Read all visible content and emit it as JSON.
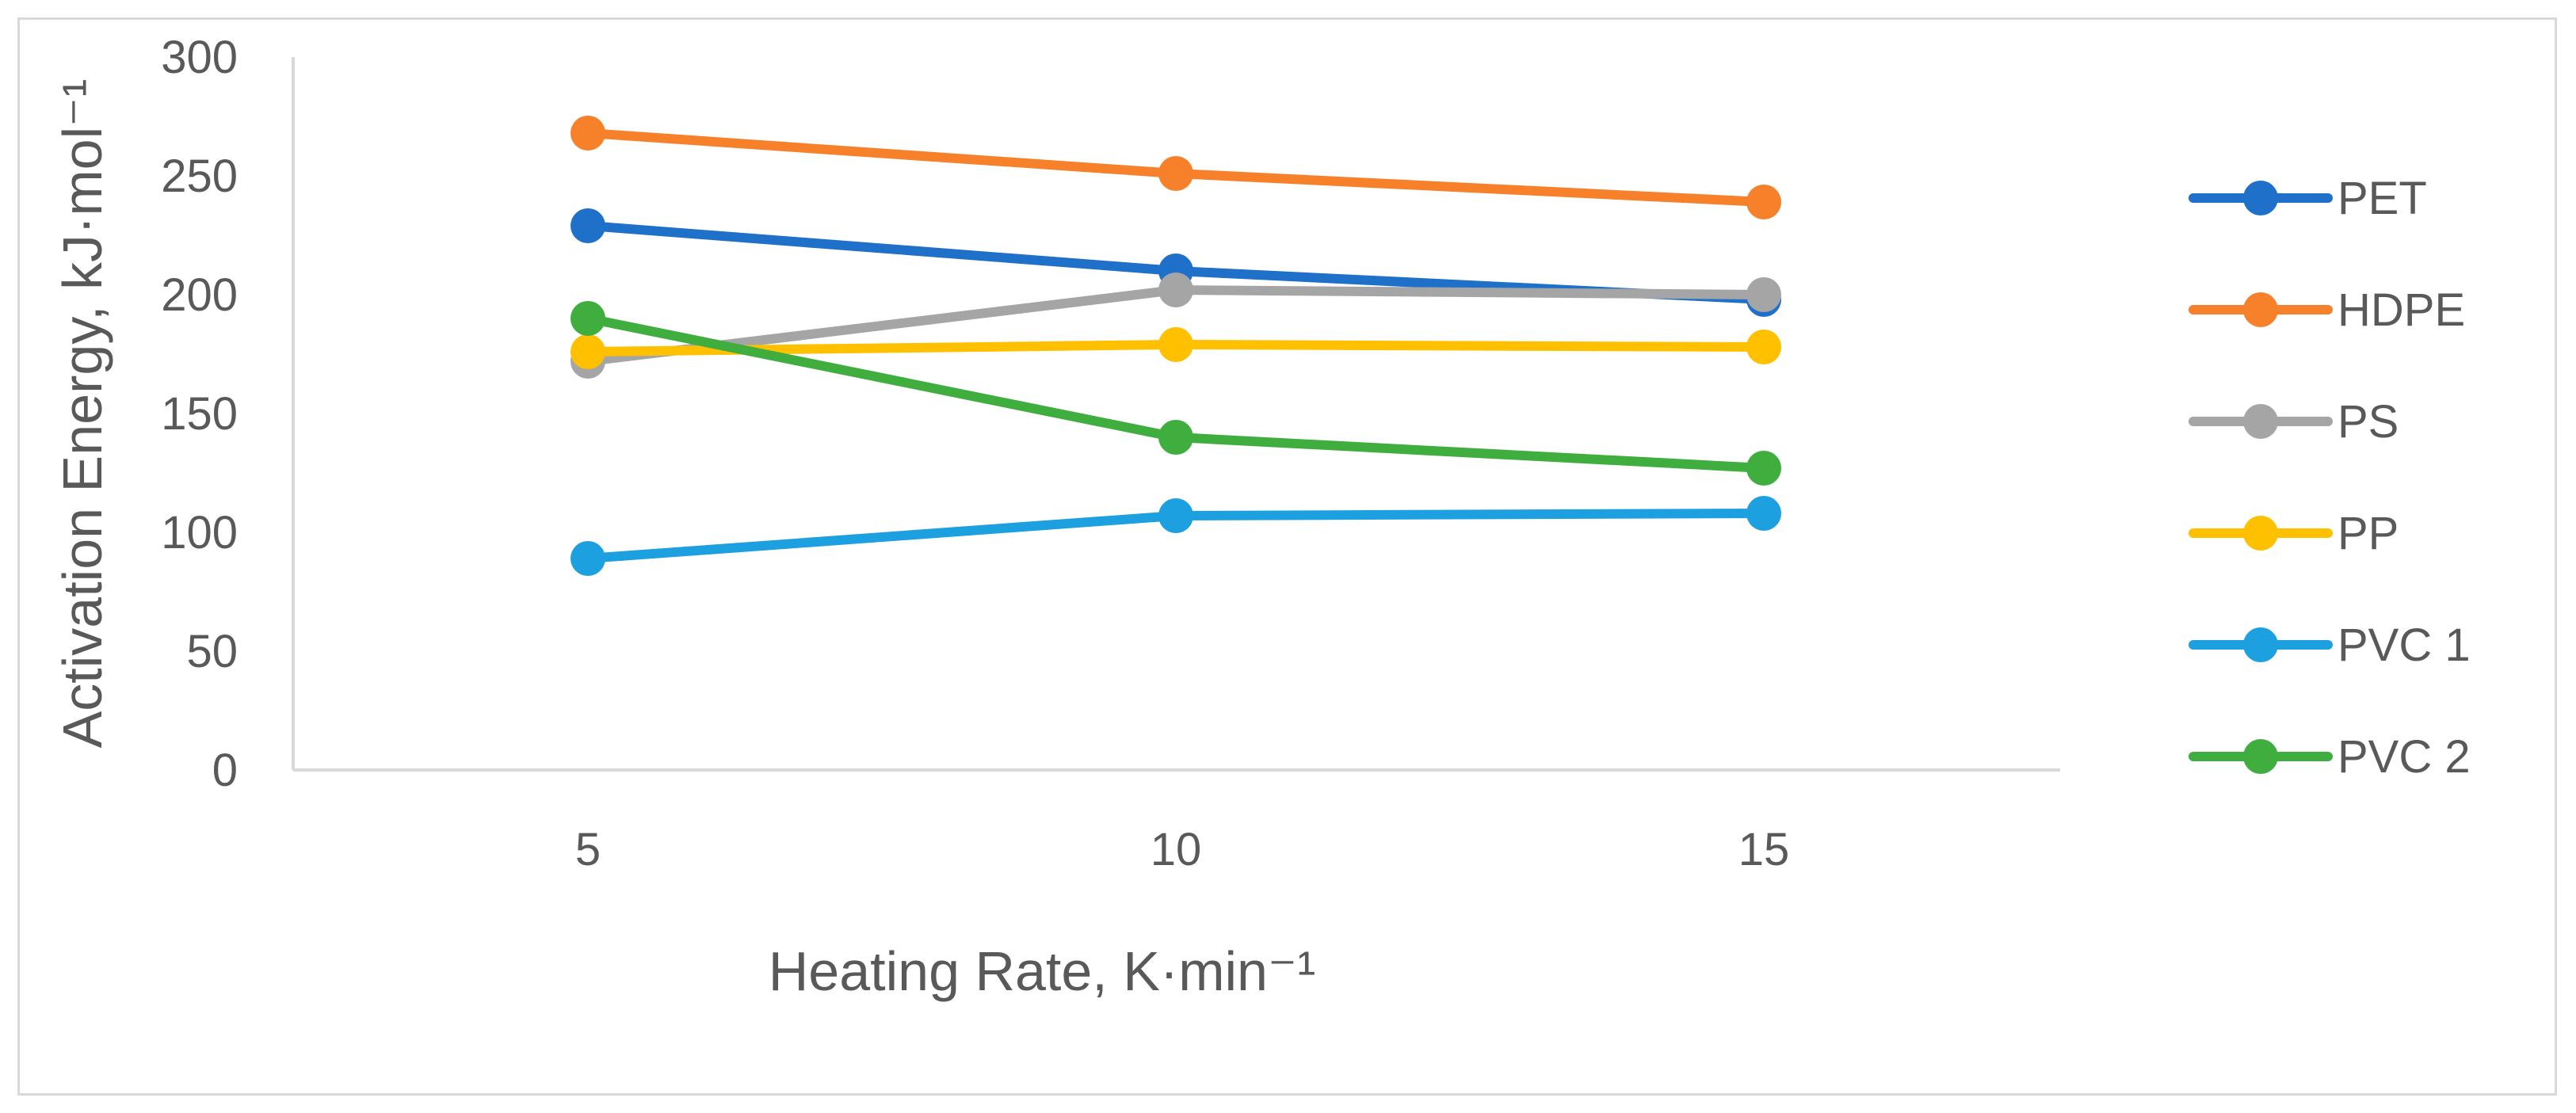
{
  "chart_data": {
    "type": "line",
    "title": "",
    "xlabel": "Heating Rate, K·min⁻¹",
    "ylabel": "Activation Energy, kJ·mol⁻¹",
    "x": [
      5,
      10,
      15
    ],
    "ylim": [
      0,
      300
    ],
    "yticks": [
      0,
      50,
      100,
      150,
      200,
      250,
      300
    ],
    "grid": false,
    "legend_position": "right",
    "series": [
      {
        "name": "PET",
        "color": "#1f70c8",
        "values": [
          229,
          210,
          198
        ]
      },
      {
        "name": "HDPE",
        "color": "#f7812a",
        "values": [
          268,
          251,
          239
        ]
      },
      {
        "name": "PS",
        "color": "#a5a5a5",
        "values": [
          172,
          202,
          200
        ]
      },
      {
        "name": "PP",
        "color": "#ffc000",
        "values": [
          176,
          179,
          178
        ]
      },
      {
        "name": "PVC 1",
        "color": "#1ca0e0",
        "values": [
          89,
          107,
          108
        ]
      },
      {
        "name": "PVC 2",
        "color": "#3fae3f",
        "values": [
          190,
          140,
          127
        ]
      }
    ]
  }
}
